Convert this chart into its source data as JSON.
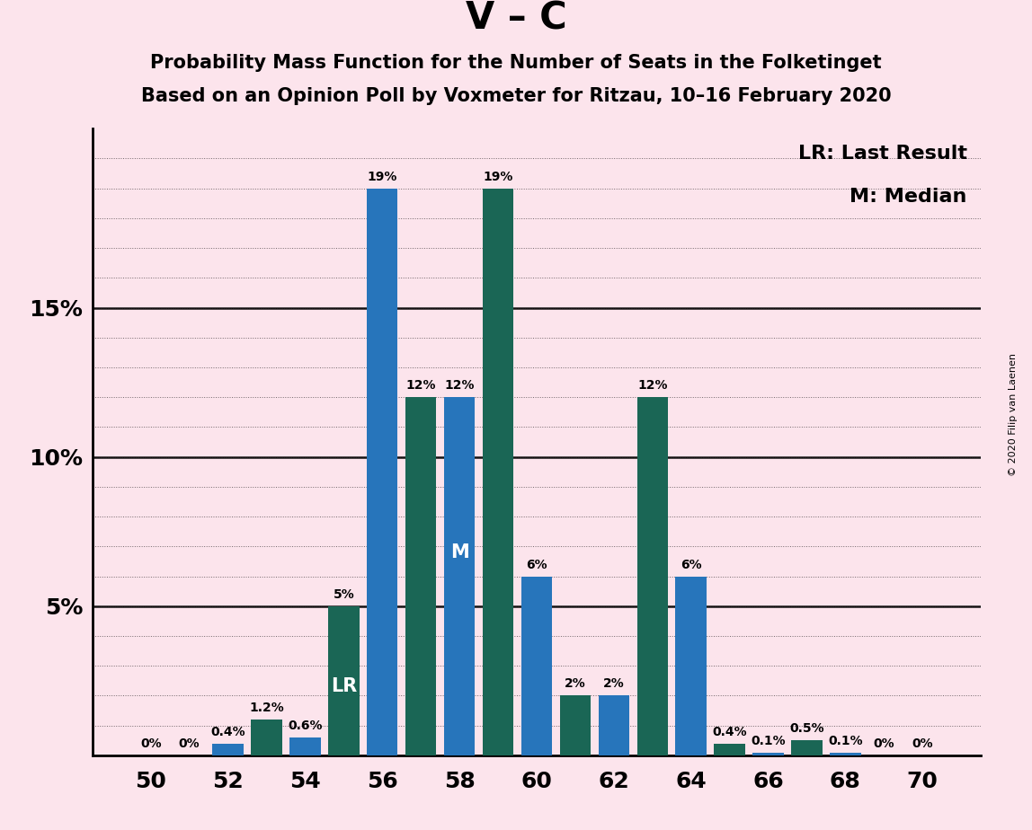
{
  "title1": "V – C",
  "title2": "Probability Mass Function for the Number of Seats in the Folketinget",
  "title3": "Based on an Opinion Poll by Voxmeter for Ritzau, 10–16 February 2020",
  "copyright": "© 2020 Filip van Laenen",
  "legend_lr": "LR: Last Result",
  "legend_m": "M: Median",
  "label_lr": "LR",
  "label_m": "M",
  "background_color": "#fce4ec",
  "blue_color": "#2775bb",
  "teal_color": "#1a6655",
  "seats": [
    50,
    51,
    52,
    53,
    54,
    55,
    56,
    57,
    58,
    59,
    60,
    61,
    62,
    63,
    64,
    65,
    66,
    67,
    68,
    69,
    70
  ],
  "blue_vals": [
    0.0,
    0.0,
    0.4,
    0.0,
    0.6,
    0.0,
    19.0,
    0.0,
    12.0,
    0.0,
    6.0,
    0.0,
    2.0,
    0.0,
    6.0,
    0.0,
    0.1,
    0.0,
    0.1,
    0.0,
    0.0
  ],
  "teal_vals": [
    0.0,
    0.0,
    0.0,
    1.2,
    0.0,
    5.0,
    0.0,
    12.0,
    0.0,
    19.0,
    0.0,
    2.0,
    0.0,
    12.0,
    0.0,
    0.4,
    0.0,
    0.5,
    0.0,
    0.0,
    0.0
  ],
  "blue_labels": [
    "0%",
    "0%",
    "0.4%",
    null,
    "0.6%",
    null,
    "19%",
    null,
    "12%",
    null,
    "6%",
    null,
    "2%",
    null,
    "6%",
    null,
    "0.1%",
    null,
    "0.1%",
    "0%",
    "0%"
  ],
  "teal_labels": [
    null,
    null,
    null,
    "1.2%",
    null,
    "5%",
    null,
    "12%",
    null,
    "19%",
    null,
    "2%",
    null,
    "12%",
    null,
    "0.4%",
    null,
    "0.5%",
    null,
    null,
    null
  ],
  "show_blue_bar": [
    false,
    false,
    true,
    false,
    true,
    false,
    true,
    false,
    true,
    false,
    true,
    false,
    true,
    false,
    true,
    false,
    true,
    false,
    true,
    false,
    false
  ],
  "show_teal_bar": [
    false,
    false,
    false,
    true,
    false,
    true,
    false,
    true,
    false,
    true,
    false,
    true,
    false,
    true,
    false,
    true,
    false,
    true,
    false,
    false,
    false
  ],
  "lr_seat": 55,
  "median_seat": 58,
  "ylim": [
    0,
    21
  ],
  "ytick_positions": [
    5,
    10,
    15
  ],
  "ytick_labels": [
    "5%",
    "10%",
    "15%"
  ],
  "xtick_positions": [
    50,
    52,
    54,
    56,
    58,
    60,
    62,
    64,
    66,
    68,
    70
  ],
  "bar_width": 0.8,
  "xlim_left": 48.5,
  "xlim_right": 71.5
}
